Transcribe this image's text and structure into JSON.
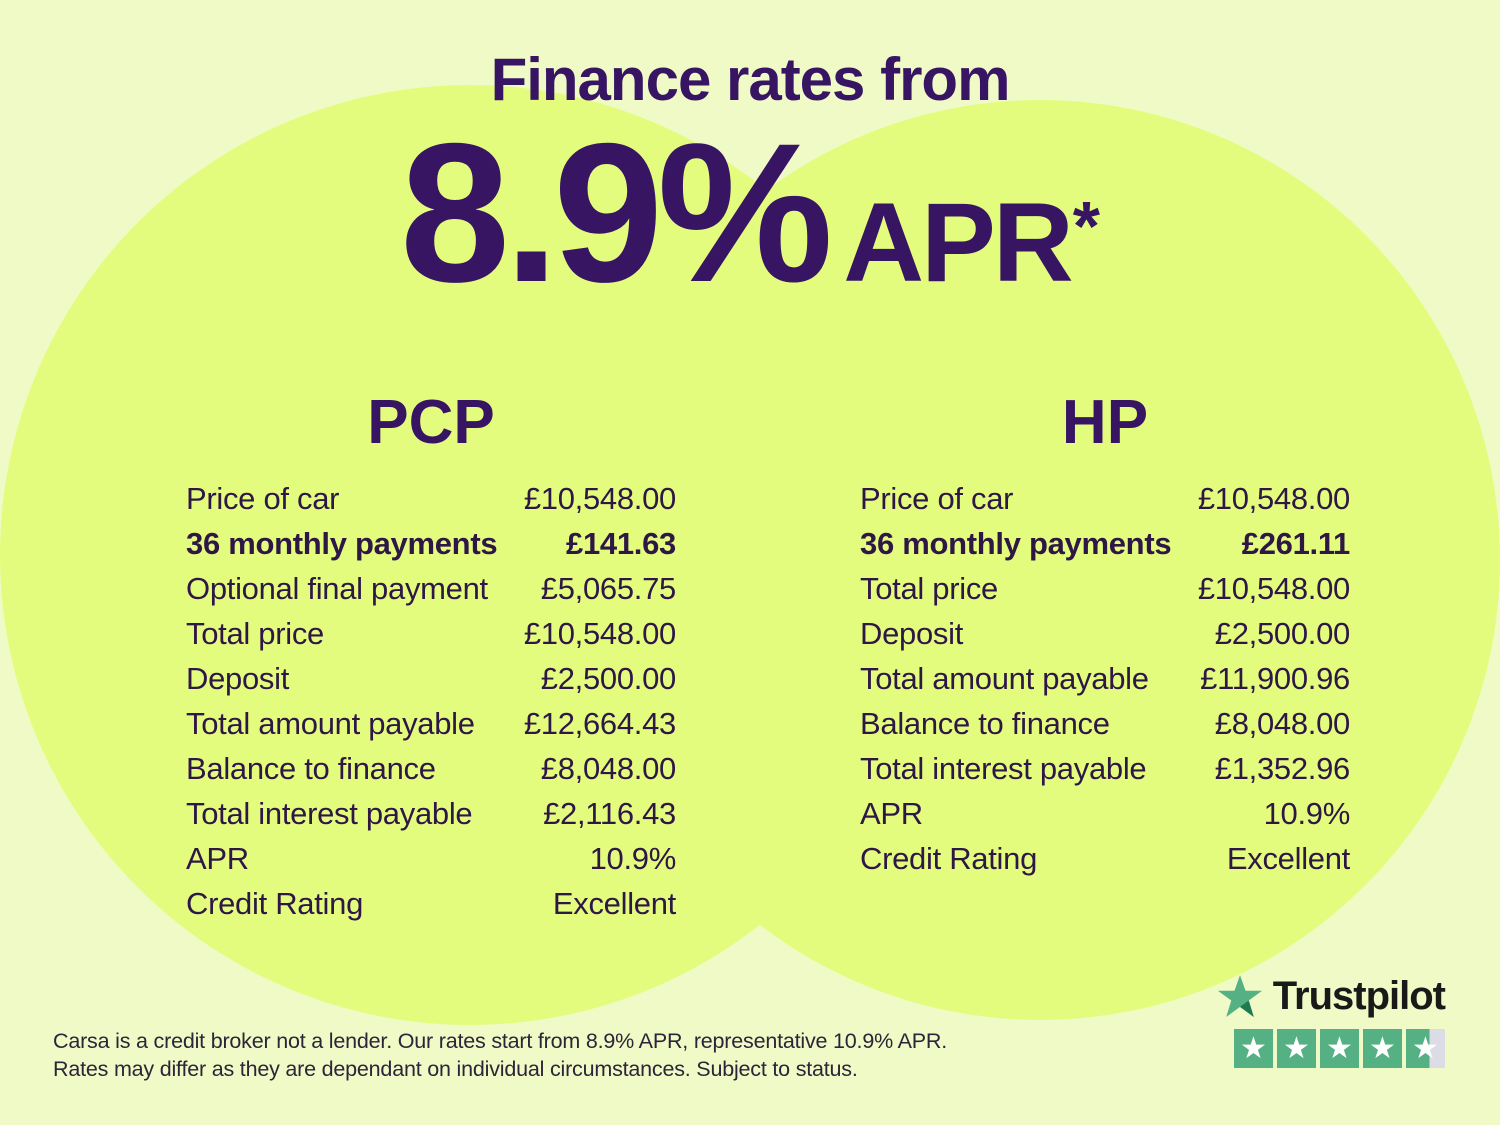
{
  "title": "Finance rates from",
  "headline": {
    "rate": "8.9%",
    "suffix": "APR",
    "asterisk": "*"
  },
  "tables": {
    "pcp": {
      "title": "PCP",
      "rows": [
        {
          "label": "Price of car",
          "value": "£10,548.00",
          "bold": false
        },
        {
          "label": "36 monthly payments",
          "value": "£141.63",
          "bold": true
        },
        {
          "label": "Optional final payment",
          "value": "£5,065.75",
          "bold": false
        },
        {
          "label": "Total price",
          "value": "£10,548.00",
          "bold": false
        },
        {
          "label": "Deposit",
          "value": "£2,500.00",
          "bold": false
        },
        {
          "label": "Total amount payable",
          "value": "£12,664.43",
          "bold": false
        },
        {
          "label": "Balance to finance",
          "value": "£8,048.00",
          "bold": false
        },
        {
          "label": "Total interest payable",
          "value": "£2,116.43",
          "bold": false
        },
        {
          "label": "APR",
          "value": "10.9%",
          "bold": false
        },
        {
          "label": "Credit Rating",
          "value": "Excellent",
          "bold": false
        }
      ]
    },
    "hp": {
      "title": "HP",
      "rows": [
        {
          "label": "Price of car",
          "value": "£10,548.00",
          "bold": false
        },
        {
          "label": "36 monthly payments",
          "value": "£261.11",
          "bold": true
        },
        {
          "label": "Total price",
          "value": "£10,548.00",
          "bold": false
        },
        {
          "label": "Deposit",
          "value": "£2,500.00",
          "bold": false
        },
        {
          "label": "Total amount payable",
          "value": "£11,900.96",
          "bold": false
        },
        {
          "label": "Balance to finance",
          "value": "£8,048.00",
          "bold": false
        },
        {
          "label": "Total interest payable",
          "value": "£1,352.96",
          "bold": false
        },
        {
          "label": "APR",
          "value": "10.9%",
          "bold": false
        },
        {
          "label": "Credit Rating",
          "value": "Excellent",
          "bold": false
        }
      ]
    }
  },
  "disclaimer": {
    "line1": "Carsa is a credit broker not a lender. Our rates start from 8.9% APR, representative 10.9% APR.",
    "line2": "Rates may differ as they are dependant on individual circumstances. Subject to status."
  },
  "trustpilot": {
    "brand": "Trustpilot",
    "rating": 4.5,
    "max_stars": 5
  },
  "colors": {
    "background": "#f0fac6",
    "circle": "#e4fc7e",
    "text_purple": "#371563",
    "table_text": "#2e1745",
    "disclaimer_text": "#2c2438",
    "trustpilot_green": "#55b184",
    "trustpilot_dark_green": "#1e7a52",
    "trustpilot_gray": "#dcdce6",
    "brand_black": "#191919"
  }
}
